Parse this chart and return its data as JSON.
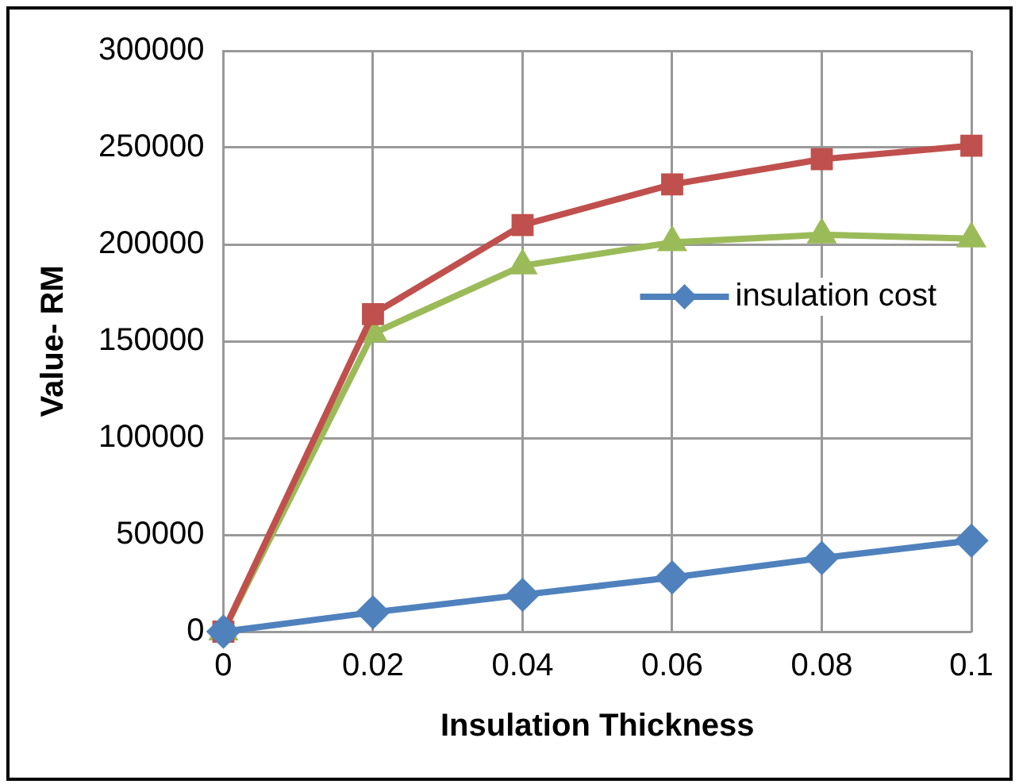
{
  "chart_data": {
    "type": "line",
    "xlabel": "Insulation Thickness",
    "ylabel": "Value- RM",
    "x": [
      0,
      0.02,
      0.04,
      0.06,
      0.08,
      0.1
    ],
    "series": [
      {
        "name": "insulation cost",
        "color": "#4f81bd",
        "marker": "diamond",
        "values": [
          0,
          10000,
          19000,
          28000,
          38000,
          47000
        ]
      },
      {
        "color": "#c0504d",
        "marker": "square",
        "values": [
          0,
          164000,
          210000,
          231000,
          244000,
          251000
        ]
      },
      {
        "color": "#9bbb59",
        "marker": "triangle",
        "values": [
          0,
          154000,
          189000,
          201000,
          205000,
          203000
        ]
      }
    ],
    "xlim": [
      0,
      0.1
    ],
    "xticks": [
      0,
      0.02,
      0.04,
      0.06,
      0.08,
      0.1
    ],
    "ylim": [
      0,
      300000
    ],
    "yticks": [
      0,
      50000,
      100000,
      150000,
      200000,
      250000,
      300000
    ],
    "grid": true,
    "legend": "right",
    "line_style": "solid"
  }
}
